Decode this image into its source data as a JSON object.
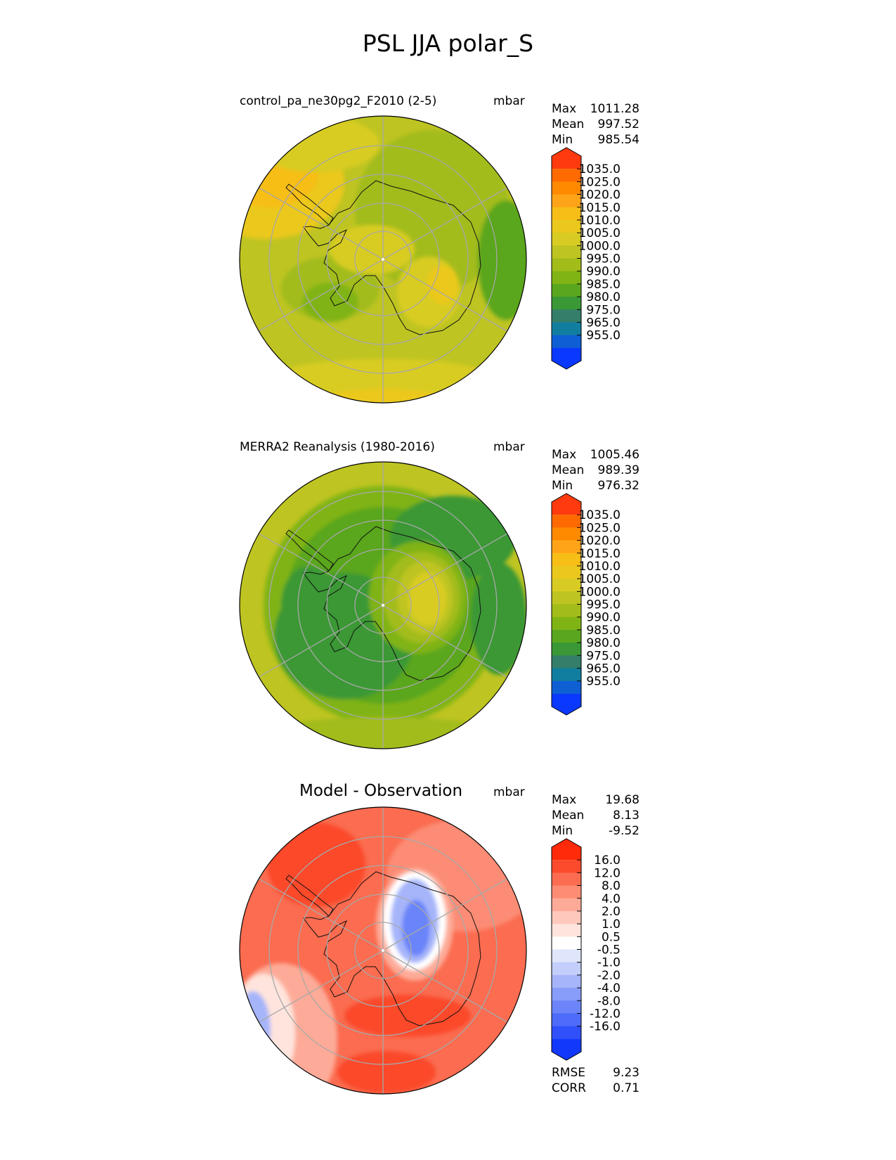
{
  "figure": {
    "title": "PSL JJA polar_S"
  },
  "chart_data": [
    {
      "type": "heatmap",
      "projection": "south-polar stereographic",
      "name": "control_pa_ne30pg2_F2010 (2-5)",
      "units": "mbar",
      "stats": [
        {
          "label": "Max",
          "value": "1011.28"
        },
        {
          "label": "Mean",
          "value": "997.52"
        },
        {
          "label": "Min",
          "value": "985.54"
        }
      ],
      "colorbar": {
        "tick_labels": [
          "1035.0",
          "1025.0",
          "1020.0",
          "1015.0",
          "1010.0",
          "1005.0",
          "1000.0",
          "995.0",
          "990.0",
          "985.0",
          "980.0",
          "975.0",
          "965.0",
          "955.0"
        ],
        "colors": [
          "#ff3a0e",
          "#ff6a00",
          "#ff8a00",
          "#ffa418",
          "#f7be18",
          "#ebc81e",
          "#d8cc24",
          "#bec422",
          "#a2bc1a",
          "#80b414",
          "#5aa61e",
          "#3a9836",
          "#347e6a",
          "#117ea0",
          "#0f5fd4",
          "#0a38ff"
        ]
      },
      "grid": true
    },
    {
      "type": "heatmap",
      "projection": "south-polar stereographic",
      "name": "MERRA2 Reanalysis (1980-2016)",
      "units": "mbar",
      "stats": [
        {
          "label": "Max",
          "value": "1005.46"
        },
        {
          "label": "Mean",
          "value": "989.39"
        },
        {
          "label": "Min",
          "value": "976.32"
        }
      ],
      "colorbar": {
        "tick_labels": [
          "1035.0",
          "1025.0",
          "1020.0",
          "1015.0",
          "1010.0",
          "1005.0",
          "1000.0",
          "995.0",
          "990.0",
          "985.0",
          "980.0",
          "975.0",
          "965.0",
          "955.0"
        ],
        "colors": [
          "#ff3a0e",
          "#ff6a00",
          "#ff8a00",
          "#ffa418",
          "#f7be18",
          "#ebc81e",
          "#d8cc24",
          "#bec422",
          "#a2bc1a",
          "#80b414",
          "#5aa61e",
          "#3a9836",
          "#347e6a",
          "#117ea0",
          "#0f5fd4",
          "#0a38ff"
        ]
      },
      "grid": true
    },
    {
      "type": "heatmap",
      "projection": "south-polar stereographic",
      "name": "Model - Observation",
      "units": "mbar",
      "stats": [
        {
          "label": "Max",
          "value": "19.68"
        },
        {
          "label": "Mean",
          "value": "8.13"
        },
        {
          "label": "Min",
          "value": "-9.52"
        }
      ],
      "extra_stats": [
        {
          "label": "RMSE",
          "value": "9.23"
        },
        {
          "label": "CORR",
          "value": "0.71"
        }
      ],
      "colorbar": {
        "tick_labels": [
          "16.0",
          "12.0",
          "8.0",
          "4.0",
          "2.0",
          "1.0",
          "0.5",
          "-0.5",
          "-1.0",
          "-2.0",
          "-4.0",
          "-8.0",
          "-12.0",
          "-16.0"
        ],
        "colors": [
          "#ff2a0a",
          "#fb4a2c",
          "#fb6c50",
          "#fc8c74",
          "#fdab98",
          "#fec8bc",
          "#fee4dc",
          "#ffffff",
          "#dfe6fc",
          "#c3cefb",
          "#a6b5fa",
          "#889cf9",
          "#6b84f9",
          "#4e6cf9",
          "#3050fa",
          "#1238fb"
        ]
      },
      "grid": true
    }
  ]
}
